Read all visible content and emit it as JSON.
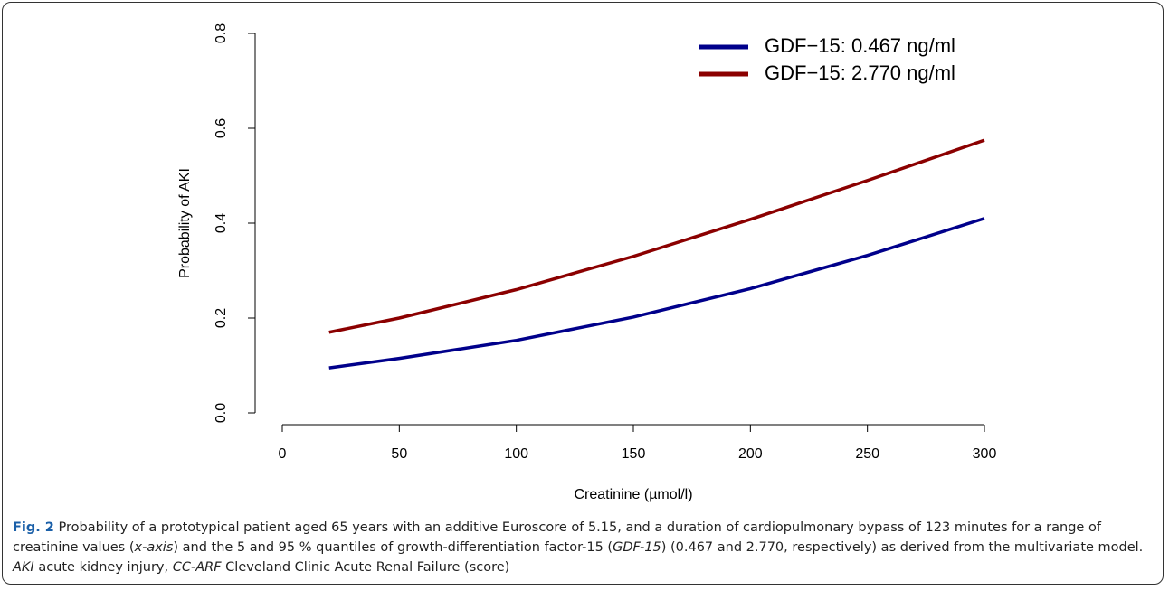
{
  "chart_data": {
    "type": "line",
    "x_label": "Creatinine (µmol/l)",
    "y_label": "Probability of AKI",
    "x": [
      20,
      50,
      100,
      150,
      200,
      250,
      300
    ],
    "series": [
      {
        "name": "GDF−15: 0.467 ng/ml",
        "color": "#00008b",
        "values": [
          0.095,
          0.115,
          0.153,
          0.202,
          0.262,
          0.332,
          0.41
        ]
      },
      {
        "name": "GDF−15: 2.770 ng/ml",
        "color": "#8b0000",
        "values": [
          0.17,
          0.2,
          0.26,
          0.33,
          0.408,
          0.49,
          0.575
        ]
      }
    ],
    "xlim": [
      0,
      300
    ],
    "xticks": [
      0,
      50,
      100,
      150,
      200,
      250,
      300
    ],
    "ylim": [
      0,
      0.8
    ],
    "yticks": [
      {
        "value": 0,
        "label": "0.0"
      },
      0.2,
      0.4,
      0.6,
      0.8
    ],
    "grid": false,
    "legend": "top-right"
  },
  "caption": {
    "label": "Fig. 2",
    "parts": [
      " Probability of a prototypical patient aged 65 years with an additive Euroscore of 5.15, and a duration of cardiopulmonary bypass of 123 minutes for a range of creatinine values (",
      "x-axis",
      ") and the 5 and 95 % quantiles of growth-differentiation factor-15 (",
      "GDF-15",
      ") (0.467 and 2.770, respectively) as derived from the multivariate model. ",
      "AKI",
      " acute kidney injury, ",
      "CC-ARF",
      " Cleveland Clinic Acute Renal Failure (score)"
    ]
  }
}
